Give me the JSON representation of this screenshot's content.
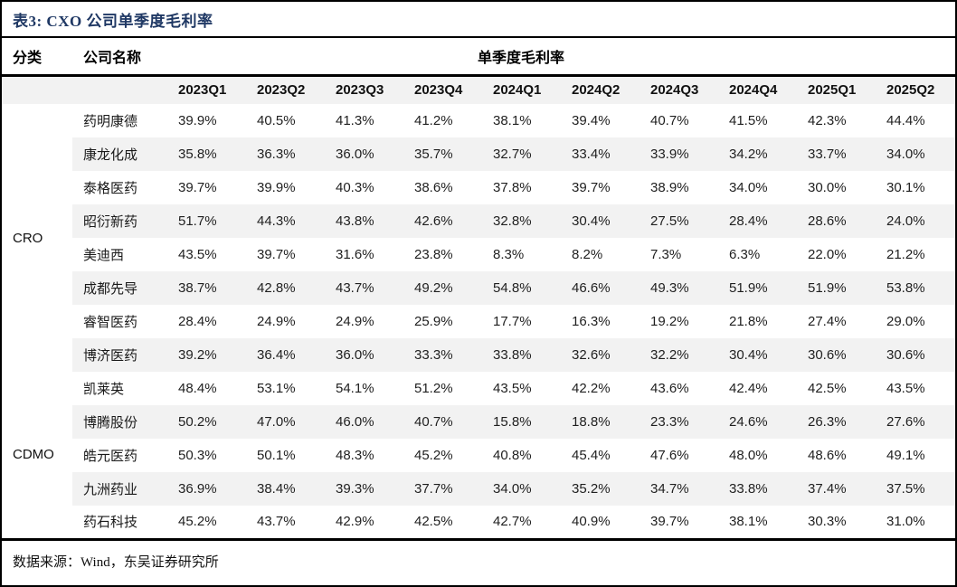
{
  "title": "表3:  CXO 公司单季度毛利率",
  "headers": {
    "category": "分类",
    "company": "公司名称",
    "metric": "单季度毛利率"
  },
  "table": {
    "quarters": [
      "2023Q1",
      "2023Q2",
      "2023Q3",
      "2023Q4",
      "2024Q1",
      "2024Q2",
      "2024Q3",
      "2024Q4",
      "2025Q1",
      "2025Q2"
    ],
    "groups": [
      {
        "category": "CRO",
        "rows": [
          {
            "company": "药明康德",
            "values": [
              "39.9%",
              "40.5%",
              "41.3%",
              "41.2%",
              "38.1%",
              "39.4%",
              "40.7%",
              "41.5%",
              "42.3%",
              "44.4%"
            ]
          },
          {
            "company": "康龙化成",
            "values": [
              "35.8%",
              "36.3%",
              "36.0%",
              "35.7%",
              "32.7%",
              "33.4%",
              "33.9%",
              "34.2%",
              "33.7%",
              "34.0%"
            ]
          },
          {
            "company": "泰格医药",
            "values": [
              "39.7%",
              "39.9%",
              "40.3%",
              "38.6%",
              "37.8%",
              "39.7%",
              "38.9%",
              "34.0%",
              "30.0%",
              "30.1%"
            ]
          },
          {
            "company": "昭衍新药",
            "values": [
              "51.7%",
              "44.3%",
              "43.8%",
              "42.6%",
              "32.8%",
              "30.4%",
              "27.5%",
              "28.4%",
              "28.6%",
              "24.0%"
            ]
          },
          {
            "company": "美迪西",
            "values": [
              "43.5%",
              "39.7%",
              "31.6%",
              "23.8%",
              "8.3%",
              "8.2%",
              "7.3%",
              "6.3%",
              "22.0%",
              "21.2%"
            ]
          },
          {
            "company": "成都先导",
            "values": [
              "38.7%",
              "42.8%",
              "43.7%",
              "49.2%",
              "54.8%",
              "46.6%",
              "49.3%",
              "51.9%",
              "51.9%",
              "53.8%"
            ]
          },
          {
            "company": "睿智医药",
            "values": [
              "28.4%",
              "24.9%",
              "24.9%",
              "25.9%",
              "17.7%",
              "16.3%",
              "19.2%",
              "21.8%",
              "27.4%",
              "29.0%"
            ]
          },
          {
            "company": "博济医药",
            "values": [
              "39.2%",
              "36.4%",
              "36.0%",
              "33.3%",
              "33.8%",
              "32.6%",
              "32.2%",
              "30.4%",
              "30.6%",
              "30.6%"
            ]
          }
        ]
      },
      {
        "category": "CDMO",
        "rows": [
          {
            "company": "凯莱英",
            "values": [
              "48.4%",
              "53.1%",
              "54.1%",
              "51.2%",
              "43.5%",
              "42.2%",
              "43.6%",
              "42.4%",
              "42.5%",
              "43.5%"
            ]
          },
          {
            "company": "博腾股份",
            "values": [
              "50.2%",
              "47.0%",
              "46.0%",
              "40.7%",
              "15.8%",
              "18.8%",
              "23.3%",
              "24.6%",
              "26.3%",
              "27.6%"
            ]
          },
          {
            "company": "皓元医药",
            "values": [
              "50.3%",
              "50.1%",
              "48.3%",
              "45.2%",
              "40.8%",
              "45.4%",
              "47.6%",
              "48.0%",
              "48.6%",
              "49.1%"
            ]
          },
          {
            "company": "九洲药业",
            "values": [
              "36.9%",
              "38.4%",
              "39.3%",
              "37.7%",
              "34.0%",
              "35.2%",
              "34.7%",
              "33.8%",
              "37.4%",
              "37.5%"
            ]
          },
          {
            "company": "药石科技",
            "values": [
              "45.2%",
              "43.7%",
              "42.9%",
              "42.5%",
              "42.7%",
              "40.9%",
              "39.7%",
              "38.1%",
              "30.3%",
              "31.0%"
            ]
          }
        ]
      }
    ]
  },
  "footer": {
    "source": "数据来源：Wind，东吴证券研究所"
  },
  "colors": {
    "title_navy": "#1F3864",
    "stripe_gray": "#F2F2F2",
    "border_black": "#000000"
  }
}
